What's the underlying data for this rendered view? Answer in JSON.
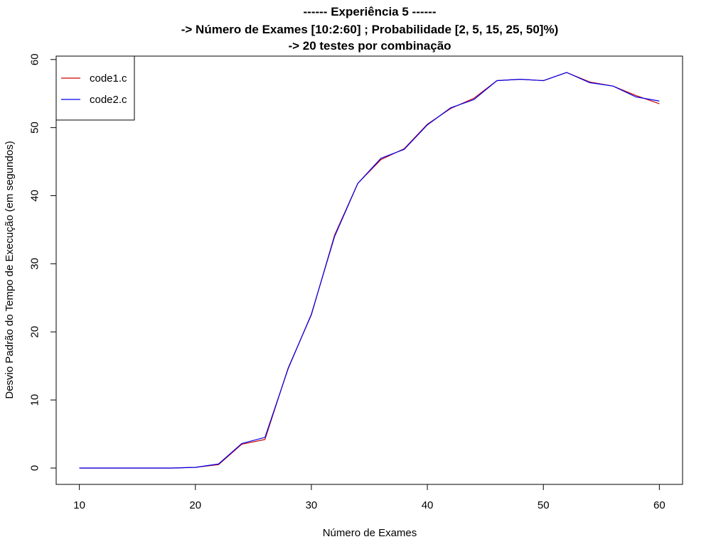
{
  "chart_data": {
    "type": "line",
    "title_lines": [
      "------ Experiência 5 ------",
      "-> Número de Exames [10:2:60] ; Probabilidade [2, 5, 15, 25, 50]%)",
      "-> 20 testes por combinação"
    ],
    "xlabel": "Número de Exames",
    "ylabel": "Desvio Padrão do Tempo de Execução (em segundos)",
    "xlim": [
      8,
      62
    ],
    "ylim": [
      -2.4,
      60.5
    ],
    "xticks": [
      10,
      20,
      30,
      40,
      50,
      60
    ],
    "yticks": [
      0,
      10,
      20,
      30,
      40,
      50,
      60
    ],
    "legend_position": "top-left",
    "x": [
      10,
      12,
      14,
      16,
      18,
      20,
      22,
      24,
      26,
      28,
      30,
      32,
      34,
      36,
      38,
      40,
      42,
      44,
      46,
      48,
      50,
      52,
      54,
      56,
      58,
      60
    ],
    "series": [
      {
        "name": "code1.c",
        "color": "#cc0000",
        "values": [
          0.0,
          0.0,
          0.0,
          0.0,
          0.0,
          0.1,
          0.5,
          3.5,
          4.2,
          14.7,
          22.5,
          34.2,
          41.8,
          45.3,
          46.9,
          50.5,
          52.8,
          54.3,
          56.9,
          57.1,
          56.9,
          58.1,
          56.7,
          56.1,
          54.7,
          53.5
        ]
      },
      {
        "name": "code2.c",
        "color": "#0000ee",
        "values": [
          0.0,
          0.0,
          0.0,
          0.0,
          0.0,
          0.1,
          0.6,
          3.6,
          4.5,
          14.6,
          22.6,
          34.0,
          41.8,
          45.5,
          46.8,
          50.4,
          52.9,
          54.1,
          56.9,
          57.1,
          56.9,
          58.1,
          56.6,
          56.1,
          54.5,
          53.9
        ]
      }
    ]
  }
}
